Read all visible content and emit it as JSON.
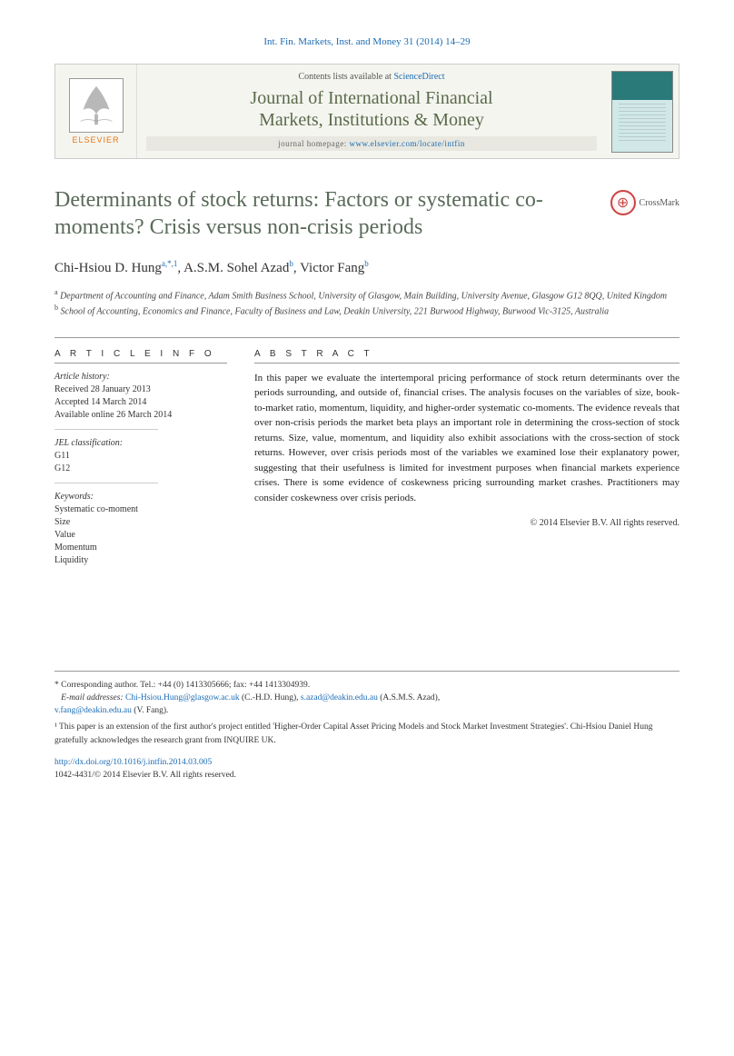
{
  "citation": "Int. Fin. Markets, Inst. and Money 31 (2014) 14–29",
  "header": {
    "contents_prefix": "Contents lists available at ",
    "contents_link": "ScienceDirect",
    "journal_name_l1": "Journal of International Financial",
    "journal_name_l2": "Markets, Institutions & Money",
    "homepage_prefix": "journal homepage: ",
    "homepage_url": "www.elsevier.com/locate/intfin",
    "elsevier": "ELSEVIER"
  },
  "crossmark": "CrossMark",
  "title": "Determinants of stock returns: Factors or systematic co-moments? Crisis versus non-crisis periods",
  "authors_html": "Chi-Hsiou D. Hung<sup>a,*,1</sup>, A.S.M. Sohel Azad<sup>b</sup>, Victor Fang<sup>b</sup>",
  "affiliations": {
    "a": "Department of Accounting and Finance, Adam Smith Business School, University of Glasgow, Main Building, University Avenue, Glasgow G12 8QQ, United Kingdom",
    "b": "School of Accounting, Economics and Finance, Faculty of Business and Law, Deakin University, 221 Burwood Highway, Burwood Vic-3125, Australia"
  },
  "article_info_head": "A R T I C L E  I N F O",
  "abstract_head": "A B S T R A C T",
  "history_label": "Article history:",
  "history": {
    "received": "Received 28 January 2013",
    "accepted": "Accepted 14 March 2014",
    "online": "Available online 26 March 2014"
  },
  "jel_label": "JEL classification:",
  "jel": [
    "G11",
    "G12"
  ],
  "keywords_label": "Keywords:",
  "keywords": [
    "Systematic co-moment",
    "Size",
    "Value",
    "Momentum",
    "Liquidity"
  ],
  "abstract": "In this paper we evaluate the intertemporal pricing performance of stock return determinants over the periods surrounding, and outside of, financial crises. The analysis focuses on the variables of size, book-to-market ratio, momentum, liquidity, and higher-order systematic co-moments. The evidence reveals that over non-crisis periods the market beta plays an important role in determining the cross-section of stock returns. Size, value, momentum, and liquidity also exhibit associations with the cross-section of stock returns. However, over crisis periods most of the variables we examined lose their explanatory power, suggesting that their usefulness is limited for investment purposes when financial markets experience crises. There is some evidence of coskewness pricing surrounding market crashes. Practitioners may consider coskewness over crisis periods.",
  "copyright": "© 2014 Elsevier B.V. All rights reserved.",
  "footer": {
    "corr": "* Corresponding author. Tel.: +44 (0) 1413305666; fax: +44 1413304939.",
    "email_label": "E-mail addresses:",
    "emails": [
      {
        "addr": "Chi-Hsiou.Hung@glasgow.ac.uk",
        "who": "(C.-H.D. Hung)"
      },
      {
        "addr": "s.azad@deakin.edu.au",
        "who": "(A.S.M.S. Azad)"
      },
      {
        "addr": "v.fang@deakin.edu.au",
        "who": "(V. Fang)"
      }
    ],
    "note1": "¹ This paper is an extension of the first author's project entitled 'Higher-Order Capital Asset Pricing Models and Stock Market Investment Strategies'. Chi-Hsiou Daniel Hung gratefully acknowledges the research grant from INQUIRE UK.",
    "doi": "http://dx.doi.org/10.1016/j.intfin.2014.03.005",
    "issn_copyright": "1042-4431/© 2014 Elsevier B.V. All rights reserved."
  }
}
